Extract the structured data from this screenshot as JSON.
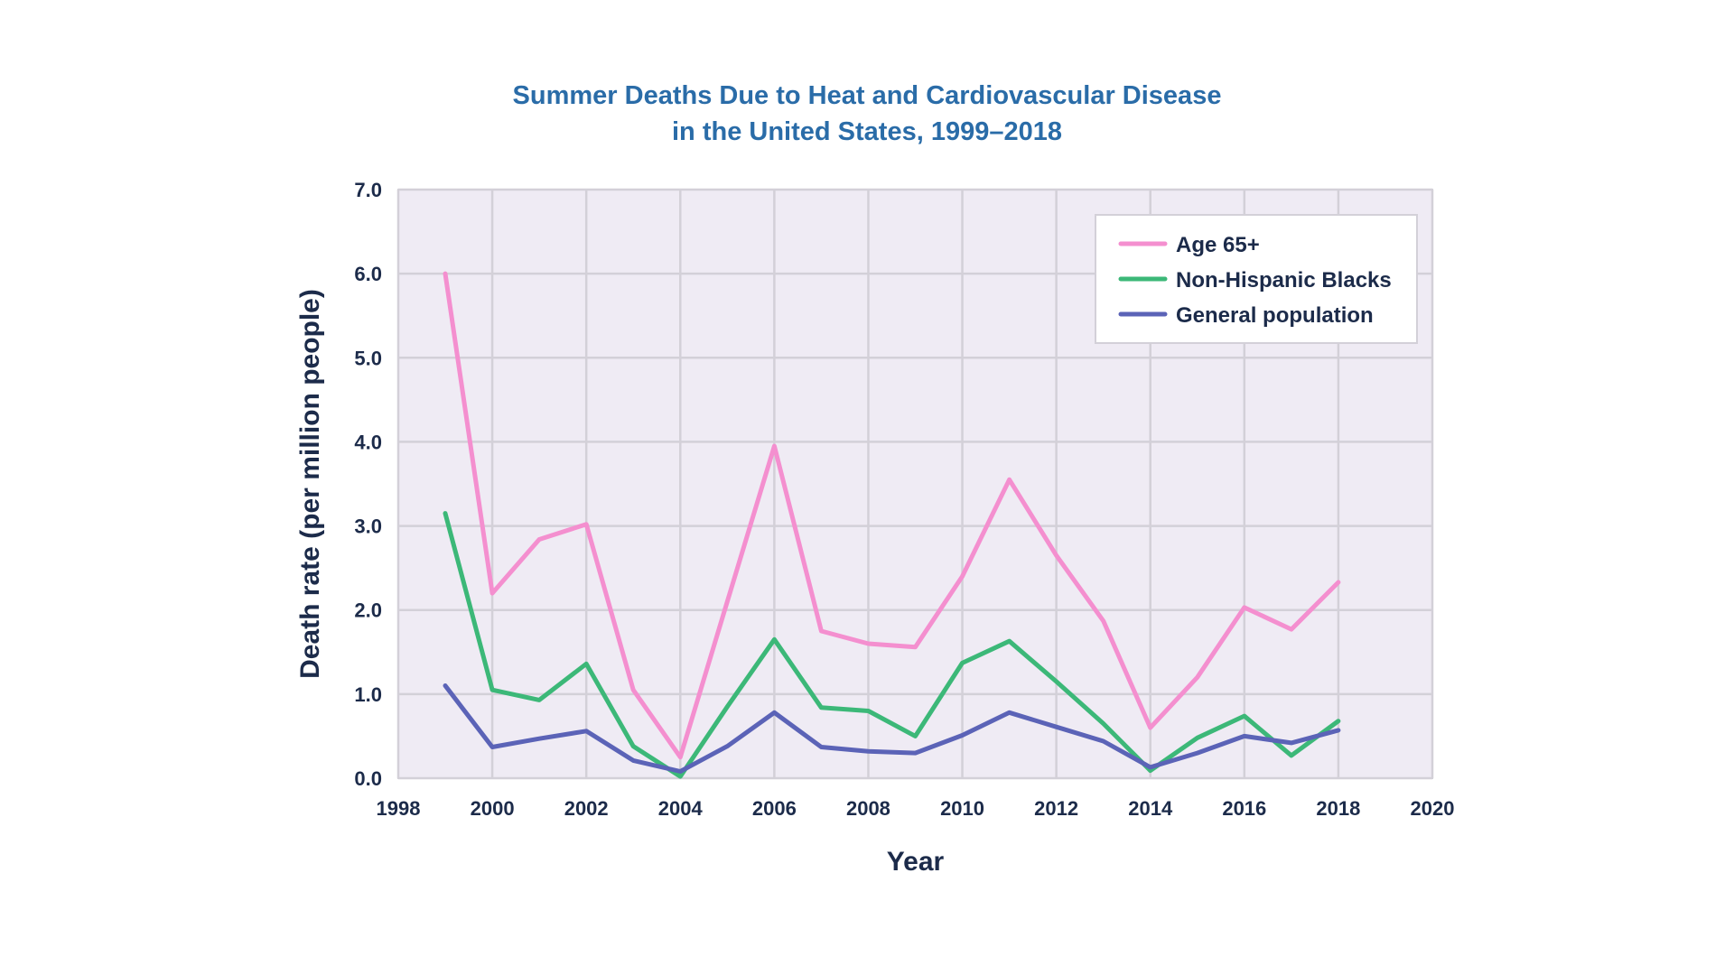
{
  "chart_data": {
    "type": "line",
    "title": "Summer Deaths Due to Heat and Cardiovascular Disease",
    "subtitle": "in the United States, 1999–2018",
    "xlabel": "Year",
    "ylabel": "Death rate (per million people)",
    "xlim": [
      1998,
      2020
    ],
    "ylim": [
      0,
      7
    ],
    "x_ticks": [
      "1998",
      "2000",
      "2002",
      "2004",
      "2006",
      "2008",
      "2010",
      "2012",
      "2014",
      "2016",
      "2018",
      "2020"
    ],
    "y_ticks": [
      "0.0",
      "1.0",
      "2.0",
      "3.0",
      "4.0",
      "5.0",
      "6.0",
      "7.0"
    ],
    "grid": true,
    "legend_position": "top-right",
    "x": [
      1999,
      2000,
      2001,
      2002,
      2003,
      2004,
      2005,
      2006,
      2007,
      2008,
      2009,
      2010,
      2011,
      2012,
      2013,
      2014,
      2015,
      2016,
      2017,
      2018
    ],
    "series": [
      {
        "name": "Age 65+",
        "color": "#f48fcf",
        "values": [
          6.0,
          2.2,
          2.84,
          3.02,
          1.05,
          0.25,
          2.1,
          3.95,
          1.75,
          1.6,
          1.56,
          2.4,
          3.55,
          2.65,
          1.87,
          0.6,
          1.2,
          2.03,
          1.77,
          2.33
        ]
      },
      {
        "name": "Non-Hispanic Blacks",
        "color": "#3cb878",
        "values": [
          3.15,
          1.05,
          0.93,
          1.36,
          0.38,
          0.02,
          0.85,
          1.65,
          0.84,
          0.8,
          0.5,
          1.37,
          1.63,
          1.15,
          0.65,
          0.09,
          0.48,
          0.74,
          0.27,
          0.68
        ]
      },
      {
        "name": "General population",
        "color": "#5b63b7",
        "values": [
          1.1,
          0.37,
          0.47,
          0.56,
          0.21,
          0.08,
          0.38,
          0.78,
          0.37,
          0.32,
          0.3,
          0.51,
          0.78,
          0.61,
          0.44,
          0.13,
          0.3,
          0.5,
          0.42,
          0.57
        ]
      }
    ]
  },
  "colors": {
    "title": "#2a6ca8",
    "plot_background": "#efebf4",
    "grid": "#d3d0d8",
    "text": "#1c2b4a"
  }
}
